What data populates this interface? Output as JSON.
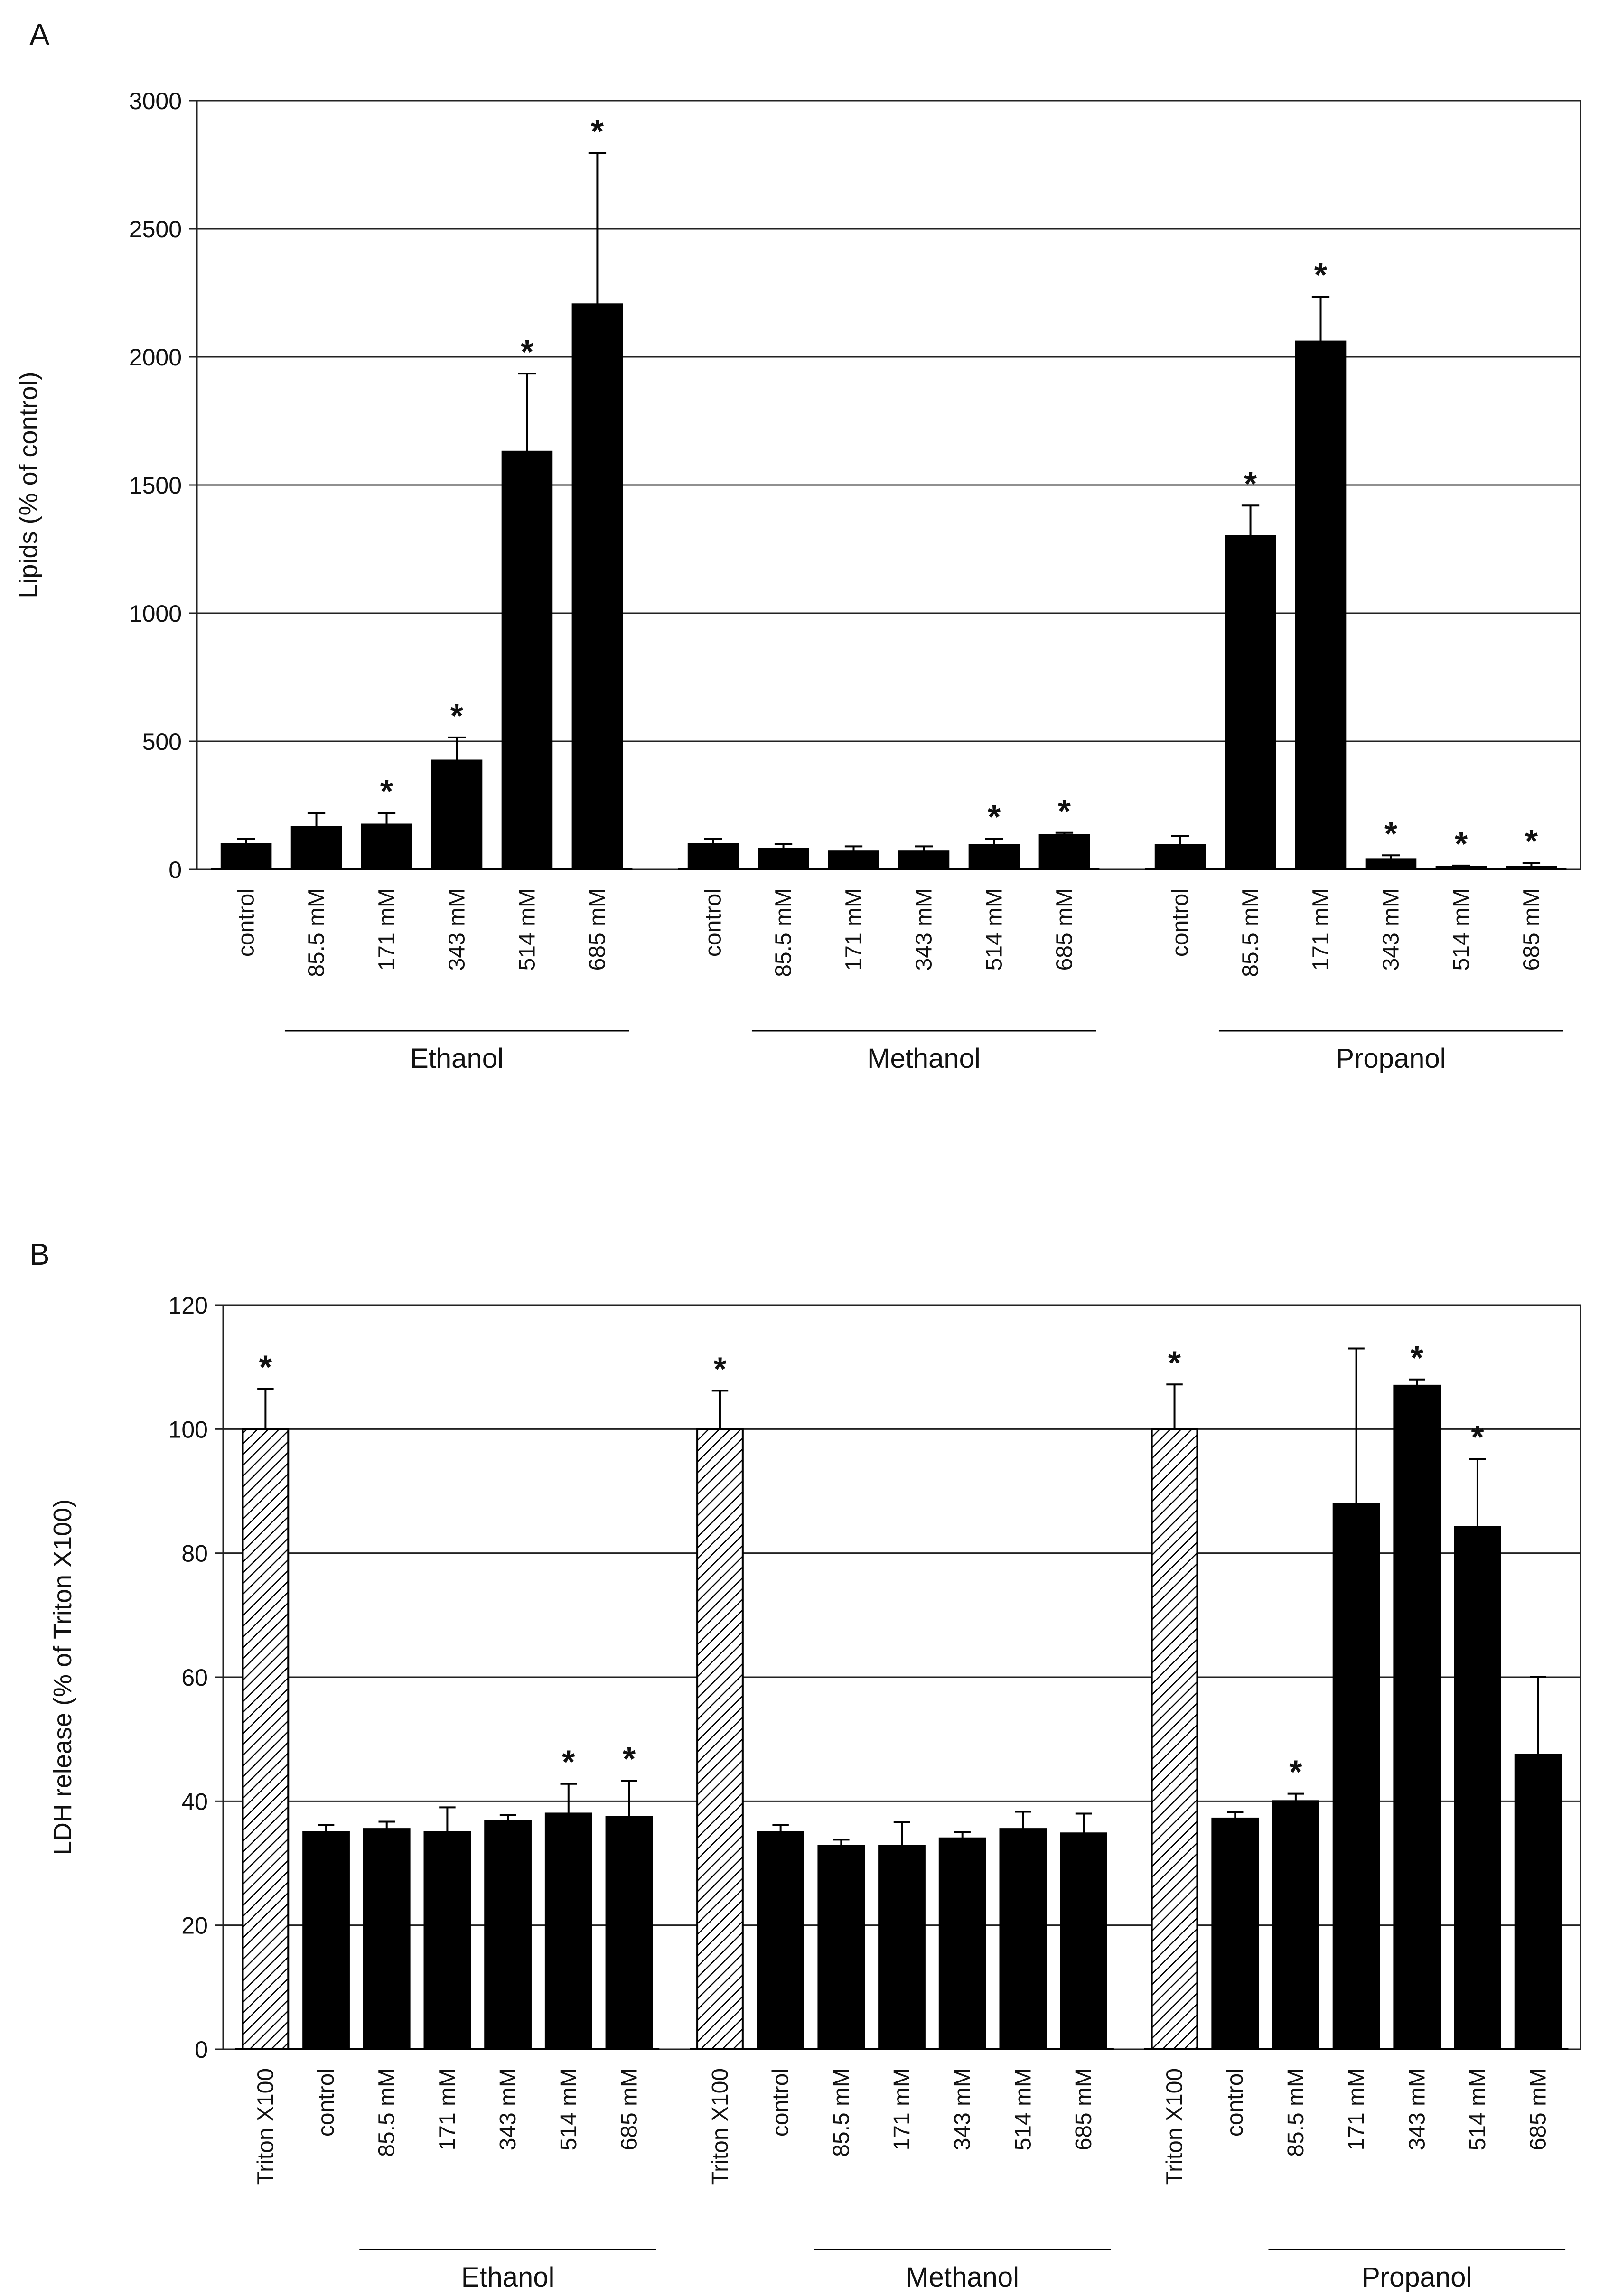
{
  "chart_data": [
    {
      "panel_label": "A",
      "type": "bar",
      "ylabel": "Lipids (% of control)",
      "ylim": [
        0,
        3000
      ],
      "yticks": [
        0,
        500,
        1000,
        1500,
        2000,
        2500,
        3000
      ],
      "grid": true,
      "groups": [
        {
          "name": "Ethanol",
          "categories": [
            "control",
            "85.5 mM",
            "171 mM",
            "343 mM",
            "514 mM",
            "685 mM"
          ],
          "values": [
            100,
            165,
            175,
            425,
            1630,
            2205
          ],
          "errors": [
            20,
            55,
            45,
            90,
            305,
            590
          ],
          "significant": [
            false,
            false,
            true,
            true,
            true,
            true
          ],
          "hatched": [
            false,
            false,
            false,
            false,
            false,
            false
          ]
        },
        {
          "name": "Methanol",
          "categories": [
            "control",
            "85.5 mM",
            "171 mM",
            "343 mM",
            "514 mM",
            "685 mM"
          ],
          "values": [
            100,
            80,
            70,
            70,
            95,
            135
          ],
          "errors": [
            20,
            20,
            20,
            20,
            25,
            8
          ],
          "significant": [
            false,
            false,
            false,
            false,
            true,
            true
          ],
          "hatched": [
            false,
            false,
            false,
            false,
            false,
            false
          ]
        },
        {
          "name": "Propanol",
          "categories": [
            "control",
            "85.5 mM",
            "171 mM",
            "343 mM",
            "514 mM",
            "685 mM"
          ],
          "values": [
            95,
            1300,
            2060,
            40,
            10,
            10
          ],
          "errors": [
            35,
            120,
            175,
            15,
            5,
            15
          ],
          "significant": [
            false,
            true,
            true,
            true,
            true,
            true
          ],
          "hatched": [
            false,
            false,
            false,
            false,
            false,
            false
          ]
        }
      ]
    },
    {
      "panel_label": "B",
      "type": "bar",
      "ylabel": "LDH release (% of Triton X100)",
      "ylim": [
        0,
        120
      ],
      "yticks": [
        0,
        20,
        40,
        60,
        80,
        100,
        120
      ],
      "grid": true,
      "groups": [
        {
          "name": "Ethanol",
          "categories": [
            "Triton X100",
            "control",
            "85.5 mM",
            "171 mM",
            "343 mM",
            "514 mM",
            "685 mM"
          ],
          "values": [
            100,
            35,
            35.5,
            35,
            36.8,
            38,
            37.5
          ],
          "errors": [
            6.5,
            1.2,
            1.2,
            4,
            1,
            4.8,
            5.8
          ],
          "significant": [
            true,
            false,
            false,
            false,
            false,
            true,
            true
          ],
          "hatched": [
            true,
            false,
            false,
            false,
            false,
            false,
            false
          ]
        },
        {
          "name": "Methanol",
          "categories": [
            "Triton X100",
            "control",
            "85.5 mM",
            "171 mM",
            "343 mM",
            "514 mM",
            "685 mM"
          ],
          "values": [
            100,
            35,
            32.8,
            32.8,
            34,
            35.5,
            34.8
          ],
          "errors": [
            6.2,
            1.2,
            1,
            3.8,
            1,
            2.8,
            3.2
          ],
          "significant": [
            true,
            false,
            false,
            false,
            false,
            false,
            false
          ],
          "hatched": [
            true,
            false,
            false,
            false,
            false,
            false,
            false
          ]
        },
        {
          "name": "Propanol",
          "categories": [
            "Triton X100",
            "control",
            "85.5 mM",
            "171 mM",
            "343 mM",
            "514 mM",
            "685 mM"
          ],
          "values": [
            100,
            37.2,
            40,
            88,
            107,
            84.2,
            47.5
          ],
          "errors": [
            7.2,
            1,
            1.2,
            25,
            1,
            11,
            12.5
          ],
          "significant": [
            true,
            false,
            true,
            false,
            true,
            true,
            false
          ],
          "hatched": [
            true,
            false,
            false,
            false,
            false,
            false,
            false
          ]
        }
      ]
    }
  ],
  "significance_marker": "*"
}
